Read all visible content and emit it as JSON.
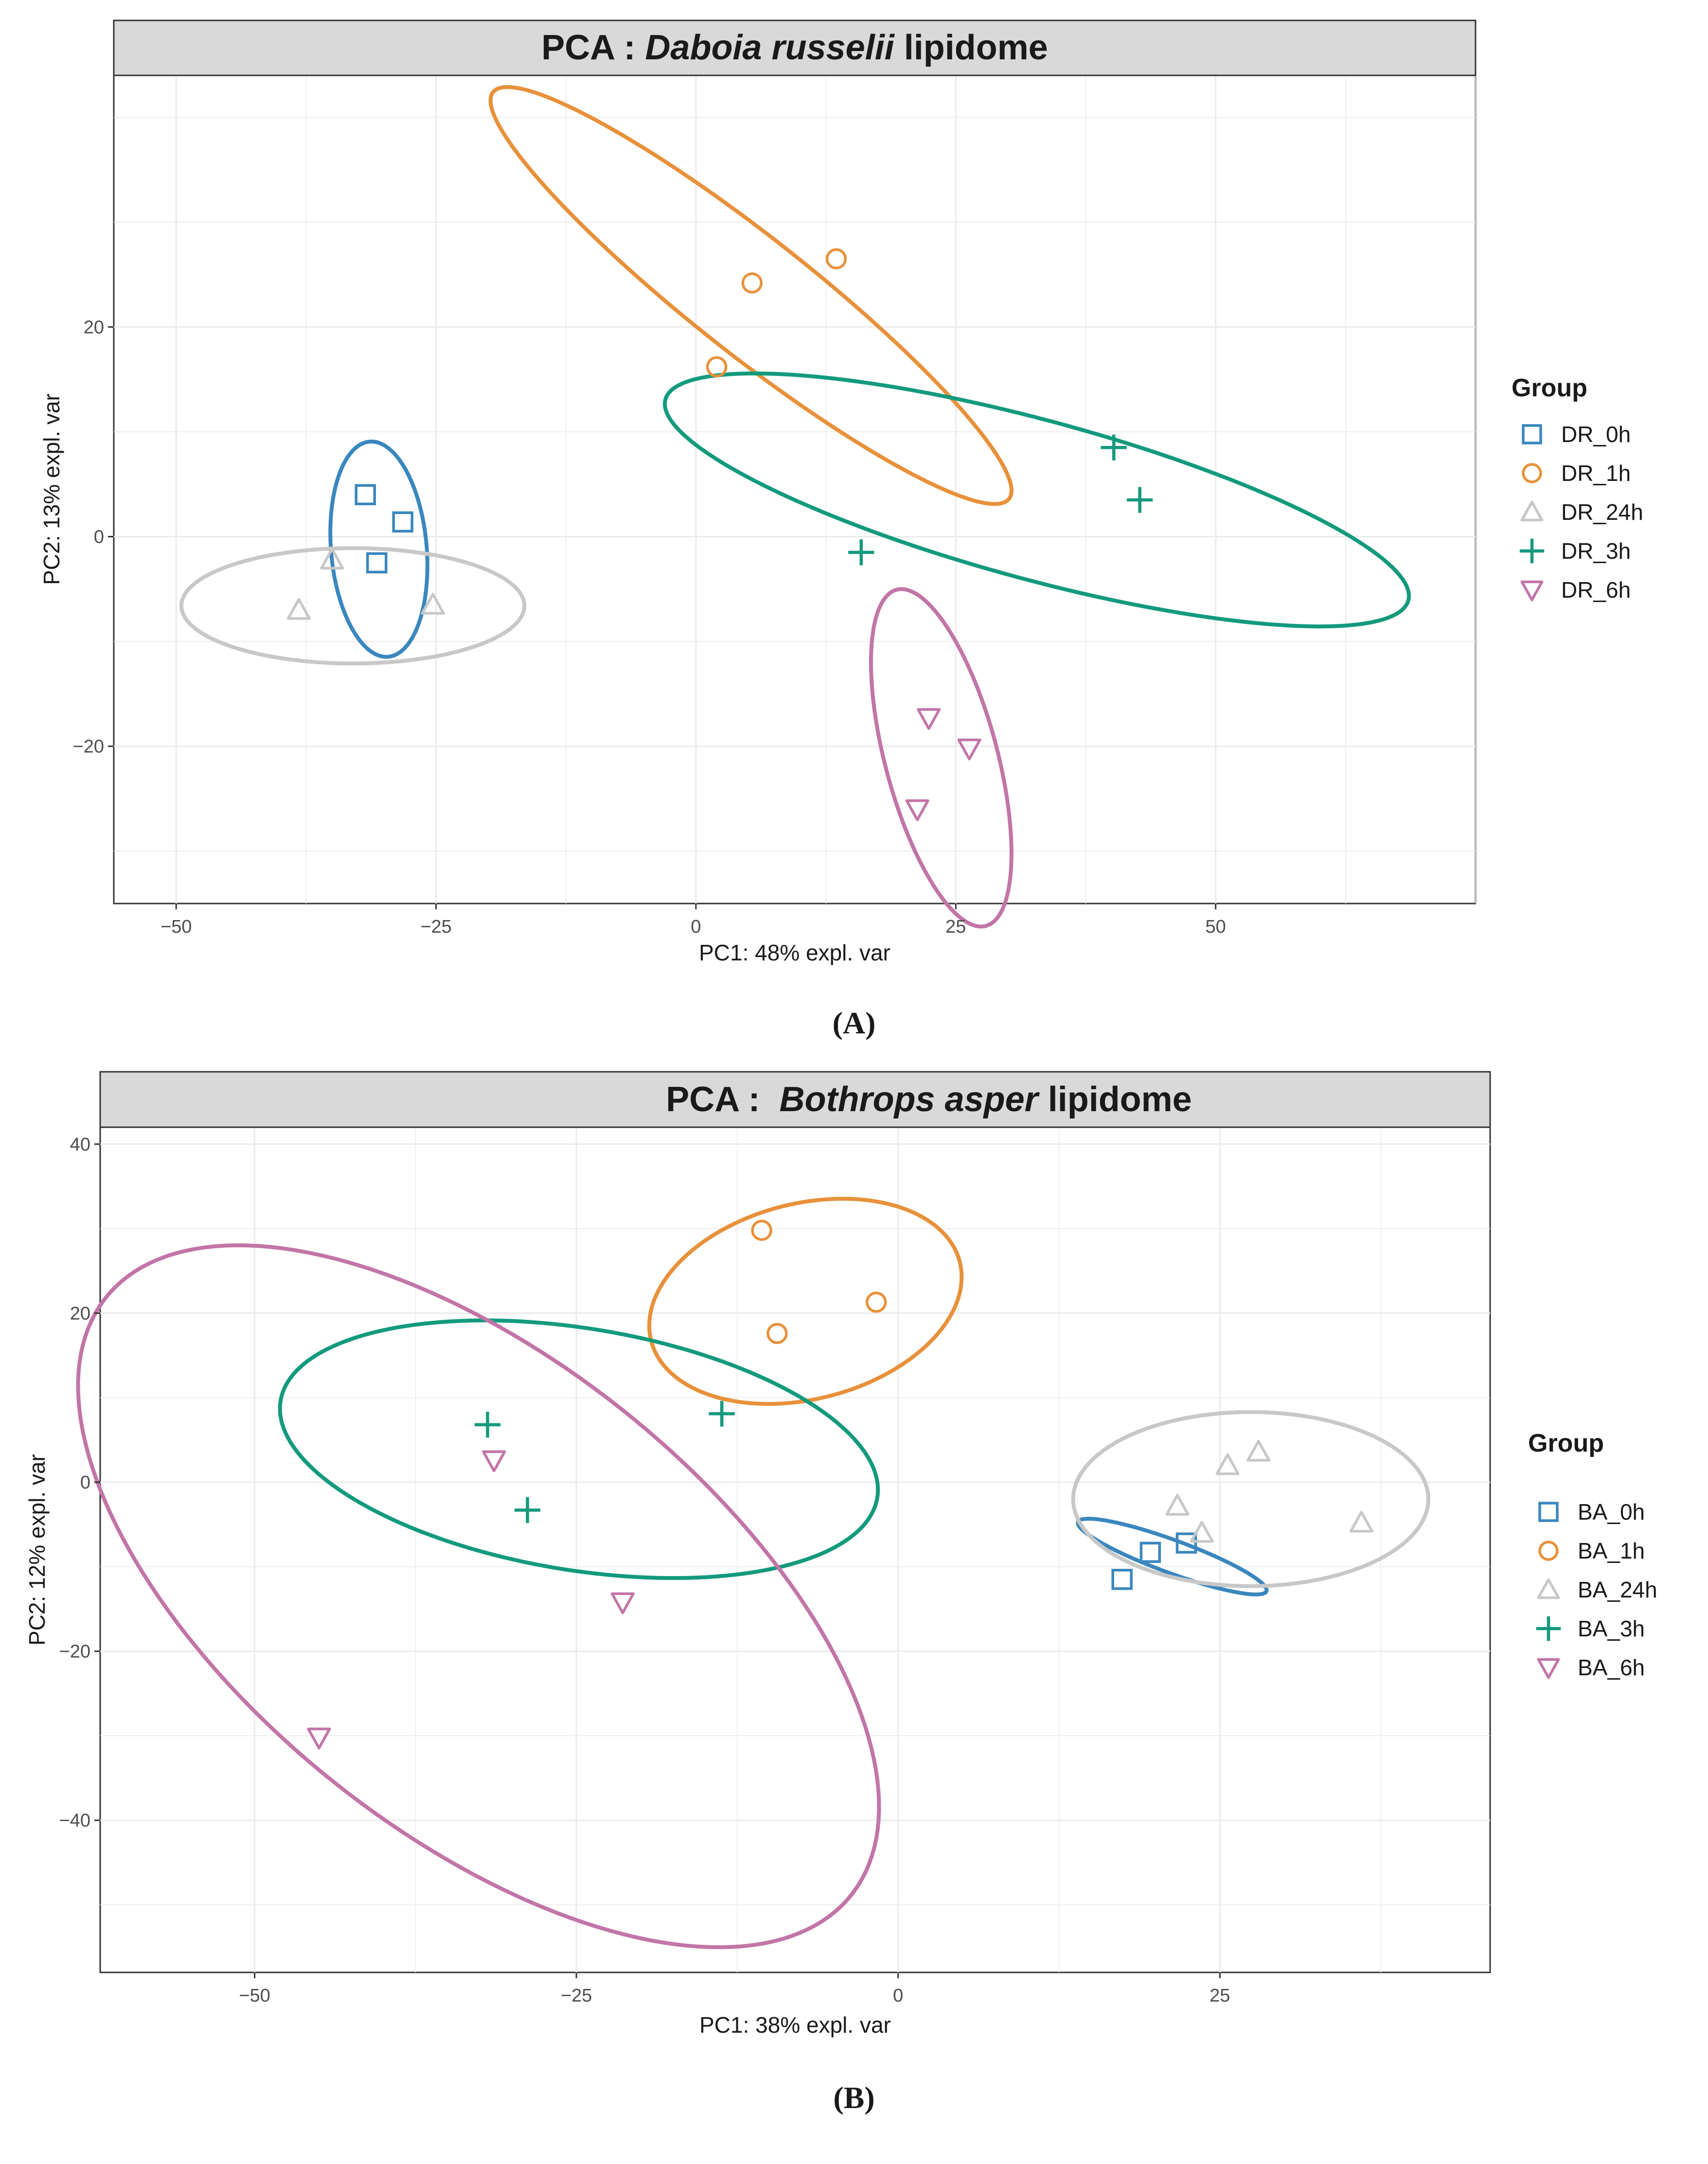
{
  "figure": {
    "panel_a_label": "(A)",
    "panel_b_label": "(B)"
  },
  "chart_data": [
    {
      "type": "scatter",
      "title_prefix": "PCA : ",
      "title_species": "Daboia russelii",
      "title_suffix": " lipidome",
      "xlabel": "PC1: 48% expl. var",
      "ylabel": "PC2: 13% expl. var",
      "xlim": [
        -56,
        75
      ],
      "ylim": [
        -35,
        44
      ],
      "xticks": [
        -50,
        -25,
        0,
        25,
        50
      ],
      "xtick_labels": [
        "−50",
        "−25",
        "0",
        "25",
        "50"
      ],
      "yticks": [
        -20,
        0,
        20
      ],
      "ytick_labels": [
        "−20",
        "0",
        "20"
      ],
      "grid": true,
      "legend_title": "Group",
      "legend_position": "right",
      "series": [
        {
          "name": "DR_0h",
          "shape": "square",
          "color": "#3a87be",
          "points": [
            [
              -31.8,
              4.0
            ],
            [
              -28.2,
              1.4
            ],
            [
              -30.7,
              -2.5
            ]
          ],
          "ellipse": {
            "cx": -30.5,
            "cy": -1.2,
            "rx": 10.3,
            "ry": 4.6,
            "angle_deg": 95
          }
        },
        {
          "name": "DR_1h",
          "shape": "circle",
          "color": "#e8913a",
          "points": [
            [
              2.0,
              16.2
            ],
            [
              5.4,
              24.2
            ],
            [
              13.5,
              26.5
            ]
          ],
          "ellipse": {
            "cx": 5.3,
            "cy": 23.0,
            "rx": 31.5,
            "ry": 5.6,
            "angle_deg": -38
          }
        },
        {
          "name": "DR_24h",
          "shape": "triangle-up",
          "color": "#c8c8c8",
          "points": [
            [
              -38.2,
              -7.0
            ],
            [
              -35.0,
              -2.2
            ],
            [
              -25.3,
              -6.5
            ]
          ],
          "ellipse": {
            "cx": -33.0,
            "cy": -6.6,
            "rx": 16.5,
            "ry": 5.5,
            "angle_deg": 0
          }
        },
        {
          "name": "DR_3h",
          "shape": "plus",
          "color": "#139a7c",
          "points": [
            [
              15.9,
              -1.5
            ],
            [
              40.2,
              8.5
            ],
            [
              42.7,
              3.5
            ]
          ],
          "ellipse": {
            "cx": 32.8,
            "cy": 3.5,
            "rx": 37.0,
            "ry": 7.6,
            "angle_deg": -15
          }
        },
        {
          "name": "DR_6h",
          "shape": "triangle-down",
          "color": "#c275a7",
          "points": [
            [
              22.4,
              -17.3
            ],
            [
              26.3,
              -20.2
            ],
            [
              21.3,
              -26.0
            ]
          ],
          "ellipse": {
            "cx": 23.6,
            "cy": -21.1,
            "rx": 16.6,
            "ry": 5.4,
            "angle_deg": -75
          }
        }
      ]
    },
    {
      "type": "scatter",
      "title_prefix": "PCA :  ",
      "title_species": "Bothrops asper",
      "title_suffix": " lipidome",
      "xlabel": "PC1: 38% expl. var",
      "ylabel": "PC2: 12% expl. var",
      "xlim": [
        -62,
        46
      ],
      "ylim": [
        -58,
        42
      ],
      "xticks": [
        -50,
        -25,
        0,
        25
      ],
      "xtick_labels": [
        "−50",
        "−25",
        "0",
        "25"
      ],
      "yticks": [
        -40,
        -20,
        0,
        20,
        40
      ],
      "ytick_labels": [
        "−40",
        "−20",
        "0",
        "20",
        "40"
      ],
      "grid": true,
      "legend_title": "Group",
      "legend_position": "right",
      "series": [
        {
          "name": "BA_0h",
          "shape": "square",
          "color": "#3a87be",
          "points": [
            [
              17.4,
              -11.5
            ],
            [
              19.6,
              -8.3
            ],
            [
              22.4,
              -7.2
            ]
          ],
          "ellipse": {
            "cx": 21.3,
            "cy": -8.8,
            "rx": 8.4,
            "ry": 1.8,
            "angle_deg": -30
          }
        },
        {
          "name": "BA_1h",
          "shape": "circle",
          "color": "#e8913a",
          "points": [
            [
              -10.6,
              29.8
            ],
            [
              -9.4,
              17.6
            ],
            [
              -1.7,
              21.3
            ]
          ],
          "ellipse": {
            "cx": -7.2,
            "cy": 21.4,
            "rx": 13.5,
            "ry": 10.6,
            "angle_deg": 45
          }
        },
        {
          "name": "BA_24h",
          "shape": "triangle-up",
          "color": "#c8c8c8",
          "points": [
            [
              21.7,
              -2.8
            ],
            [
              25.6,
              2.0
            ],
            [
              28.0,
              3.6
            ],
            [
              23.6,
              -6.0
            ],
            [
              36.0,
              -4.8
            ]
          ],
          "ellipse": {
            "cx": 27.4,
            "cy": -2.0,
            "rx": 13.8,
            "ry": 10.3,
            "angle_deg": 0
          }
        },
        {
          "name": "BA_3h",
          "shape": "plus",
          "color": "#139a7c",
          "points": [
            [
              -31.9,
              6.8
            ],
            [
              -28.8,
              -3.3
            ],
            [
              -13.7,
              8.1
            ]
          ],
          "ellipse": {
            "cx": -24.8,
            "cy": 3.9,
            "rx": 24.0,
            "ry": 14.0,
            "angle_deg": -18
          }
        },
        {
          "name": "BA_6h",
          "shape": "triangle-down",
          "color": "#c275a7",
          "points": [
            [
              -31.4,
              2.6
            ],
            [
              -21.4,
              -14.2
            ],
            [
              -45.0,
              -30.2
            ]
          ],
          "ellipse": {
            "cx": -32.6,
            "cy": -13.5,
            "rx": 47.0,
            "ry": 22.0,
            "angle_deg": -58
          }
        }
      ]
    }
  ]
}
